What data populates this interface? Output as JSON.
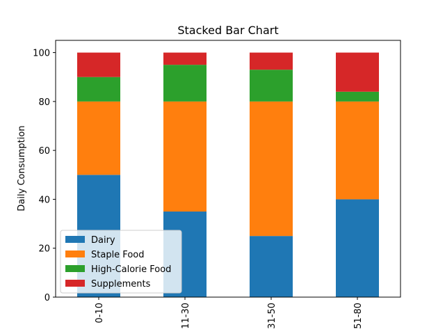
{
  "chart_data": {
    "type": "bar",
    "stacked": true,
    "title": "Stacked Bar Chart",
    "xlabel": "",
    "ylabel": "Daily Consumption",
    "categories": [
      "0-10",
      "11-30",
      "31-50",
      "51-80"
    ],
    "series": [
      {
        "name": "Dairy",
        "color": "#1f77b4",
        "values": [
          50,
          35,
          25,
          40
        ]
      },
      {
        "name": "Staple Food",
        "color": "#ff7f0e",
        "values": [
          30,
          45,
          55,
          40
        ]
      },
      {
        "name": "High-Calorie Food",
        "color": "#2ca02c",
        "values": [
          10,
          15,
          13,
          4
        ]
      },
      {
        "name": "Supplements",
        "color": "#d62728",
        "values": [
          10,
          5,
          7,
          16
        ]
      }
    ],
    "ylim": [
      0,
      105
    ],
    "yticks": [
      0,
      20,
      40,
      60,
      80,
      100
    ],
    "grid": false,
    "legend_position": "lower-left",
    "x_tick_rotation": "vertical"
  }
}
